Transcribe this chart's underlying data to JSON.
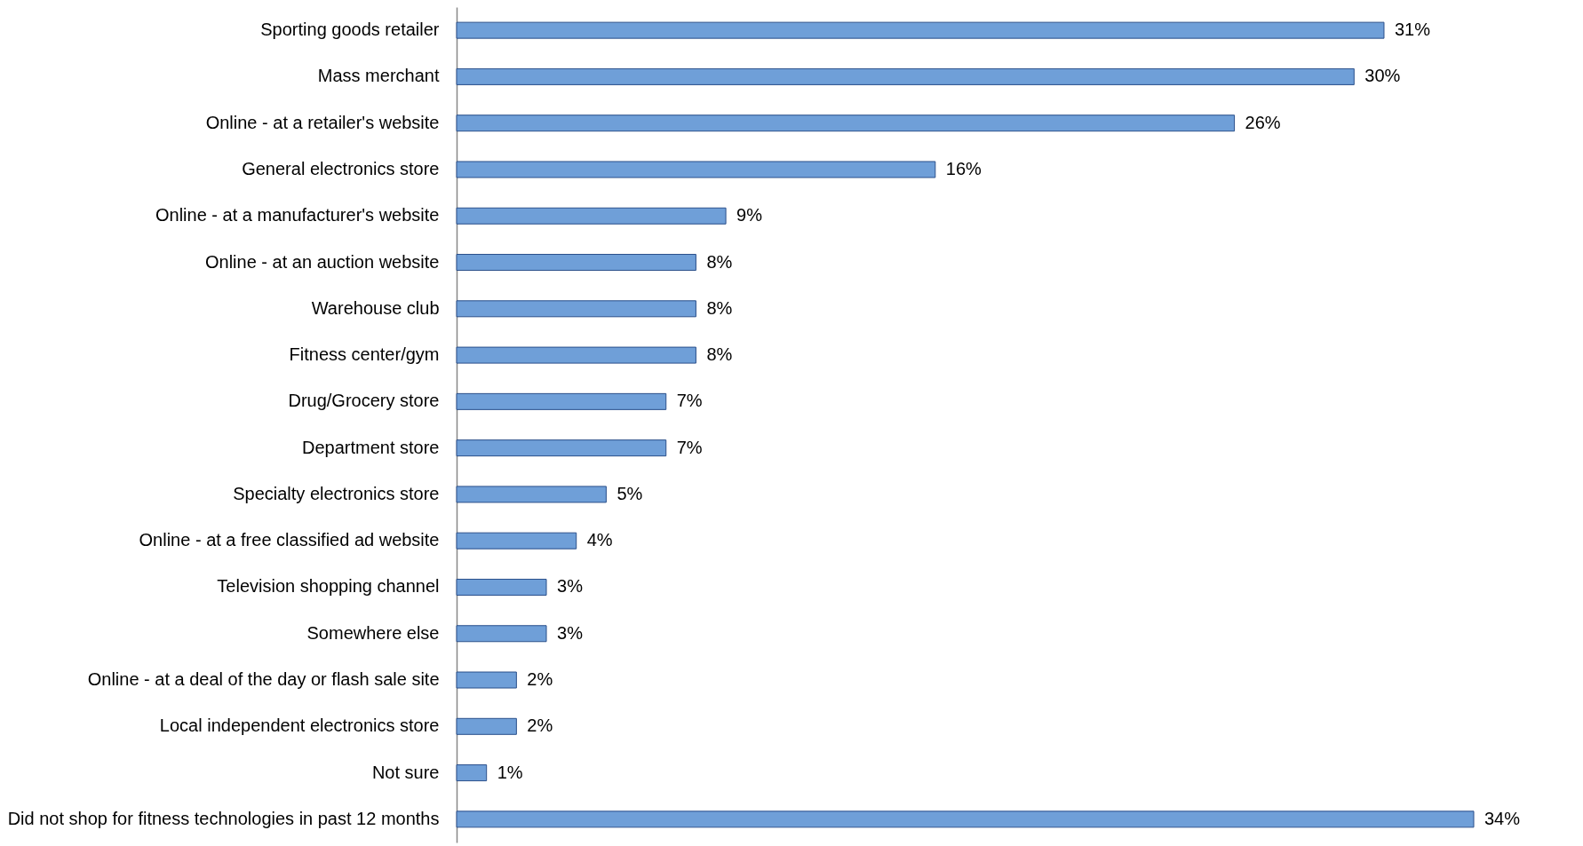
{
  "chart_data": {
    "type": "bar",
    "orientation": "horizontal",
    "color": "#6f9fd8",
    "categories": [
      "Sporting goods retailer",
      "Mass merchant",
      "Online - at a retailer's website",
      "General electronics store",
      "Online - at a manufacturer's website",
      "Online - at an auction website",
      "Warehouse club",
      "Fitness center/gym",
      "Drug/Grocery store",
      "Department store",
      "Specialty electronics store",
      "Online - at a free classified ad website",
      "Television shopping channel",
      "Somewhere else",
      "Online - at a deal of the day or flash sale site",
      "Local independent electronics store",
      "Not sure",
      "Did not shop for fitness technologies in past 12 months"
    ],
    "values": [
      31,
      30,
      26,
      16,
      9,
      8,
      8,
      8,
      7,
      7,
      5,
      4,
      3,
      3,
      2,
      2,
      1,
      34
    ],
    "value_labels": [
      "31%",
      "30%",
      "26%",
      "16%",
      "9%",
      "8%",
      "8%",
      "8%",
      "7%",
      "7%",
      "5%",
      "4%",
      "3%",
      "3%",
      "2%",
      "2%",
      "1%",
      "34%"
    ]
  }
}
